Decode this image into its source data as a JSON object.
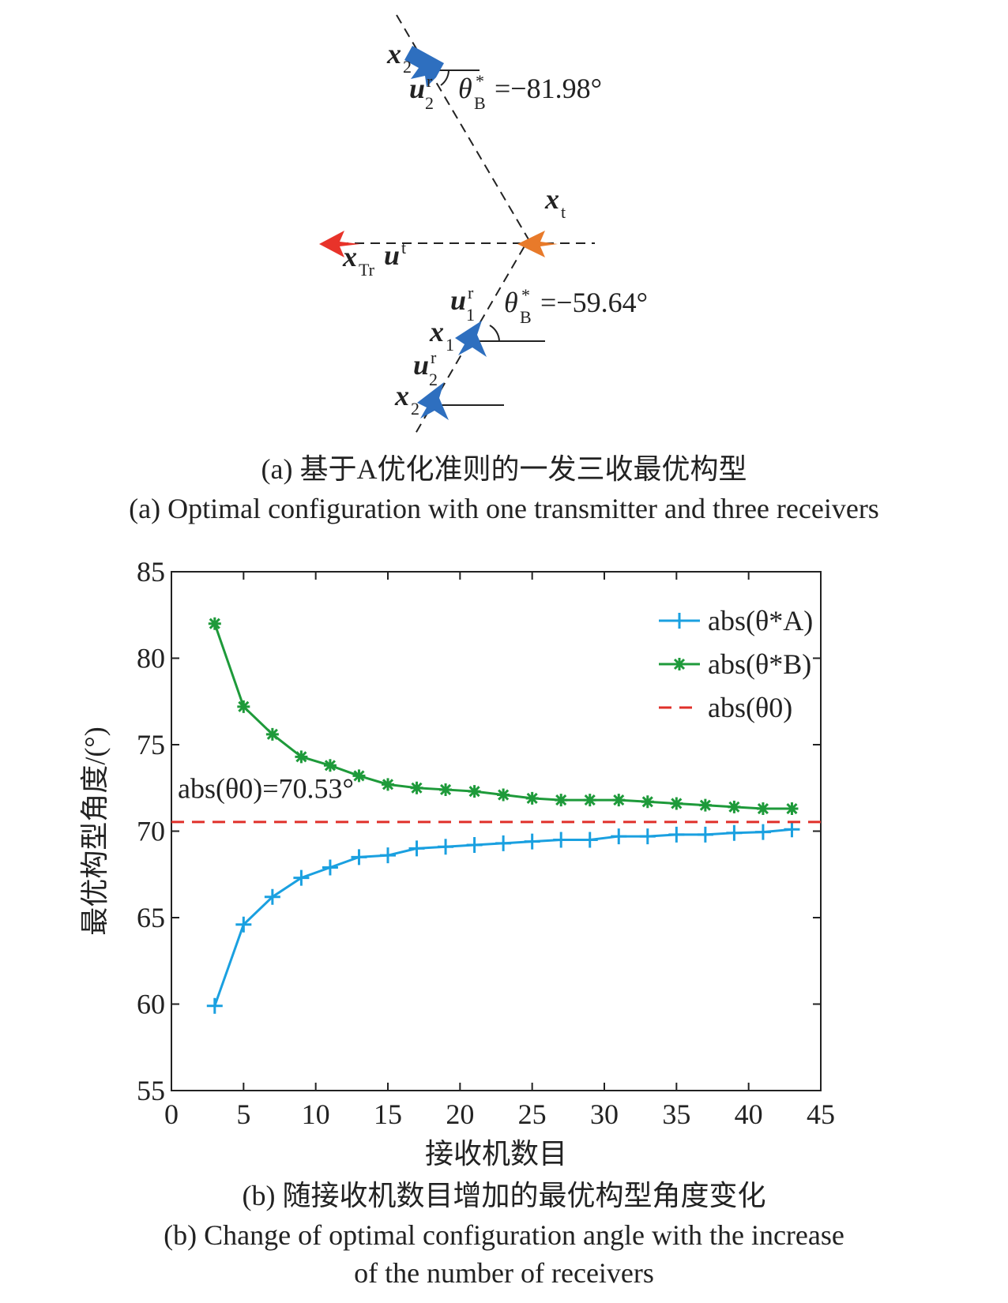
{
  "diagram": {
    "labels": [
      {
        "symbol": "x",
        "sub": "2"
      },
      {
        "symbol": "u",
        "sup": "r",
        "sub": "2"
      },
      {
        "symbol": "θ",
        "sup": "*",
        "sub": "B",
        "value": "=−81.98°"
      },
      {
        "symbol": "x",
        "sub": "t"
      },
      {
        "symbol": "x",
        "sub": "Tr"
      },
      {
        "symbol": "u",
        "sup": "t"
      },
      {
        "symbol": "u",
        "sup": "r",
        "sub": "1"
      },
      {
        "symbol": "θ",
        "sup": "*",
        "sub": "B",
        "value": "=−59.64°"
      },
      {
        "symbol": "x",
        "sub": "1"
      },
      {
        "symbol": "u",
        "sup": "r",
        "sub": "2"
      },
      {
        "symbol": "x",
        "sub": "2"
      }
    ],
    "caption_cn": "(a) 基于A优化准则的一发三收最优构型",
    "caption_en": "(a) Optimal configuration with one transmitter and three receivers"
  },
  "chart_data": {
    "type": "line",
    "xlabel": "接收机数目",
    "ylabel": "最优构型角度/(°)",
    "x": [
      3,
      5,
      7,
      9,
      11,
      13,
      15,
      17,
      19,
      21,
      23,
      25,
      27,
      29,
      31,
      33,
      35,
      37,
      39,
      41,
      43
    ],
    "series": [
      {
        "name": "abs(θ*A)",
        "color": "#1aa0e0",
        "marker": "plus",
        "values": [
          59.9,
          64.6,
          66.2,
          67.3,
          67.9,
          68.5,
          68.6,
          69.0,
          69.1,
          69.2,
          69.3,
          69.4,
          69.5,
          69.5,
          69.7,
          69.7,
          69.8,
          69.8,
          69.9,
          69.95,
          70.1
        ]
      },
      {
        "name": "abs(θ*B)",
        "color": "#1e9a3a",
        "marker": "asterisk",
        "values": [
          82.0,
          77.2,
          75.6,
          74.3,
          73.8,
          73.2,
          72.7,
          72.5,
          72.4,
          72.3,
          72.1,
          71.9,
          71.8,
          71.8,
          71.8,
          71.7,
          71.6,
          71.5,
          71.4,
          71.3,
          71.3
        ]
      },
      {
        "name": "abs(θ0)",
        "color": "#e0302a",
        "dashed": true,
        "x": [
          0,
          45
        ],
        "values": [
          70.53,
          70.53
        ]
      }
    ],
    "annotation": "abs(θ0)=70.53°",
    "xlim": [
      0,
      45
    ],
    "ylim": [
      55,
      85
    ],
    "xticks": [
      0,
      5,
      10,
      15,
      20,
      25,
      30,
      35,
      40,
      45
    ],
    "yticks": [
      55,
      60,
      65,
      70,
      75,
      80,
      85
    ],
    "legend": "upper right",
    "caption_cn": "(b) 随接收机数目增加的最优构型角度变化",
    "caption_en": [
      "(b) Change of optimal configuration angle with the increase",
      "of the number of receivers"
    ]
  }
}
